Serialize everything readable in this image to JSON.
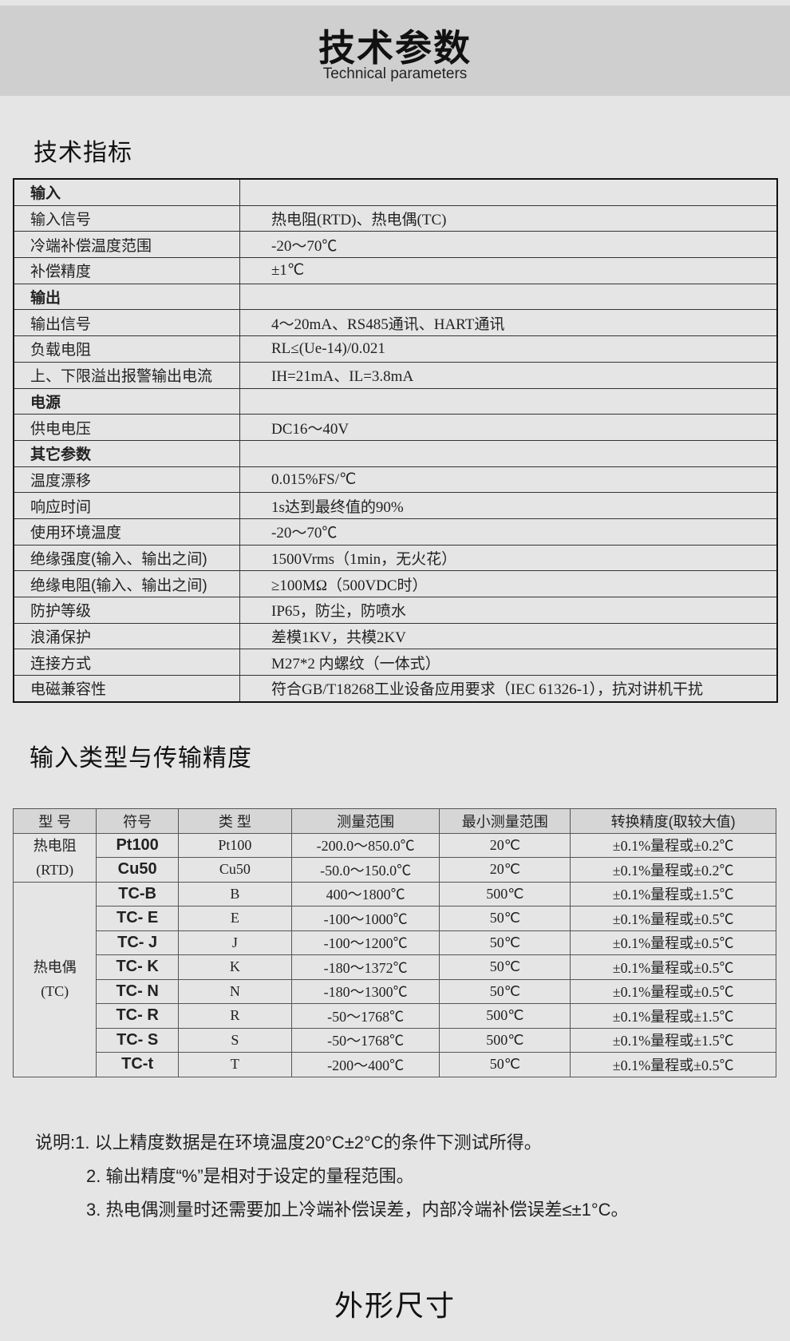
{
  "header": {
    "title": "技术参数",
    "subtitle": "Technical parameters"
  },
  "spec": {
    "heading": "技术指标",
    "rows": [
      {
        "k": "输入",
        "v": "",
        "section": true
      },
      {
        "k": "输入信号",
        "v": "热电阻(RTD)、热电偶(TC)"
      },
      {
        "k": "冷端补偿温度范围",
        "v": "-20～70℃"
      },
      {
        "k": "补偿精度",
        "v": "±1℃"
      },
      {
        "k": "输出",
        "v": "",
        "section": true
      },
      {
        "k": "输出信号",
        "v": "4～20mA、RS485通讯、HART通讯"
      },
      {
        "k": "负载电阻",
        "v": "RL≤(Ue-14)/0.021"
      },
      {
        "k": "上、下限溢出报警输出电流",
        "v": "IH=21mA、IL=3.8mA"
      },
      {
        "k": "电源",
        "v": "",
        "section": true
      },
      {
        "k": "供电电压",
        "v": "DC16～40V"
      },
      {
        "k": "其它参数",
        "v": "",
        "section": true
      },
      {
        "k": "温度漂移",
        "v": "0.015%FS/℃"
      },
      {
        "k": "响应时间",
        "v": "1s达到最终值的90%"
      },
      {
        "k": "使用环境温度",
        "v": "-20～70℃"
      },
      {
        "k": "绝缘强度(输入、输出之间)",
        "v": "1500Vrms（1min，无火花）"
      },
      {
        "k": "绝缘电阻(输入、输出之间)",
        "v": "≥100MΩ（500VDC时）"
      },
      {
        "k": "防护等级",
        "v": "IP65，防尘，防喷水"
      },
      {
        "k": "浪涌保护",
        "v": "差模1KV，共模2KV"
      },
      {
        "k": "连接方式",
        "v": "M27*2 内螺纹（一体式）"
      },
      {
        "k": "电磁兼容性",
        "v": "符合GB/T18268工业设备应用要求（IEC 61326-1），抗对讲机干扰"
      }
    ]
  },
  "accuracy": {
    "heading": "输入类型与传输精度",
    "columns": [
      "型 号",
      "符号",
      "类 型",
      "测量范围",
      "最小测量范围",
      "转换精度(取较大值)"
    ],
    "groups": [
      {
        "name": "热电阻",
        "sub": "(RTD)",
        "rows": [
          [
            "Pt100",
            "Pt100",
            "-200.0～850.0℃",
            "20℃",
            "±0.1%量程或±0.2℃"
          ],
          [
            "Cu50",
            "Cu50",
            "-50.0～150.0℃",
            "20℃",
            "±0.1%量程或±0.2℃"
          ]
        ]
      },
      {
        "name": "热电偶",
        "sub": "(TC)",
        "rows": [
          [
            "TC-B",
            "B",
            "400～1800℃",
            "500℃",
            "±0.1%量程或±1.5℃"
          ],
          [
            "TC- E",
            "E",
            "-100～1000℃",
            "50℃",
            "±0.1%量程或±0.5℃"
          ],
          [
            "TC- J",
            "J",
            "-100～1200℃",
            "50℃",
            "±0.1%量程或±0.5℃"
          ],
          [
            "TC- K",
            "K",
            "-180～1372℃",
            "50℃",
            "±0.1%量程或±0.5℃"
          ],
          [
            "TC- N",
            "N",
            "-180～1300℃",
            "50℃",
            "±0.1%量程或±0.5℃"
          ],
          [
            "TC- R",
            "R",
            "-50～1768℃",
            "500℃",
            "±0.1%量程或±1.5℃"
          ],
          [
            "TC- S",
            "S",
            "-50～1768℃",
            "500℃",
            "±0.1%量程或±1.5℃"
          ],
          [
            "TC-t",
            "T",
            "-200～400℃",
            "50℃",
            "±0.1%量程或±0.5℃"
          ]
        ]
      }
    ]
  },
  "notes": [
    "说明:1. 以上精度数据是在环境温度20°C±2°C的条件下测试所得。",
    "2. 输出精度“%”是相对于设定的量程范围。",
    "3. 热电偶测量时还需要加上冷端补偿误差，内部冷端补偿误差≤±1°C。"
  ],
  "footer": {
    "title": "外形尺寸"
  }
}
